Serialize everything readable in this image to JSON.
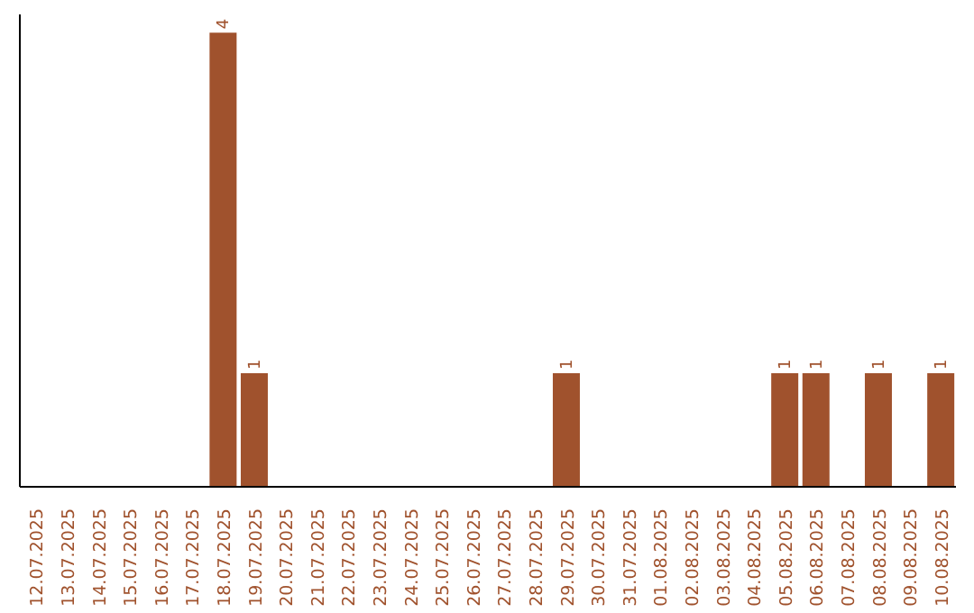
{
  "chart_data": {
    "type": "bar",
    "categories": [
      "12.07.2025",
      "13.07.2025",
      "14.07.2025",
      "15.07.2025",
      "16.07.2025",
      "17.07.2025",
      "18.07.2025",
      "19.07.2025",
      "20.07.2025",
      "21.07.2025",
      "22.07.2025",
      "23.07.2025",
      "24.07.2025",
      "25.07.2025",
      "26.07.2025",
      "27.07.2025",
      "28.07.2025",
      "29.07.2025",
      "30.07.2025",
      "31.07.2025",
      "01.08.2025",
      "02.08.2025",
      "03.08.2025",
      "04.08.2025",
      "05.08.2025",
      "06.08.2025",
      "07.08.2025",
      "08.08.2025",
      "09.08.2025",
      "10.08.2025"
    ],
    "values": [
      0,
      0,
      0,
      0,
      0,
      0,
      4,
      1,
      0,
      0,
      0,
      0,
      0,
      0,
      0,
      0,
      0,
      1,
      0,
      0,
      0,
      0,
      0,
      0,
      1,
      1,
      0,
      1,
      0,
      1
    ],
    "value_labels": [
      null,
      null,
      null,
      null,
      null,
      null,
      "4",
      "1",
      null,
      null,
      null,
      null,
      null,
      null,
      null,
      null,
      null,
      "1",
      null,
      null,
      null,
      null,
      null,
      null,
      "1",
      "1",
      null,
      "1",
      null,
      "1"
    ],
    "color": "#a0522d",
    "tick_labels": "x"
  }
}
